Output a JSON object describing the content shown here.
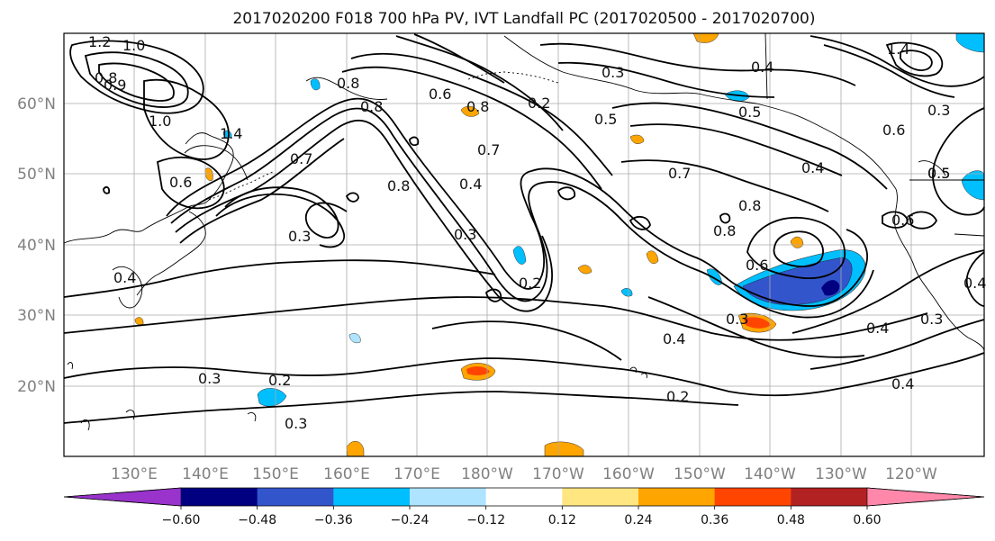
{
  "title": "2017020200 F018 700 hPa PV, IVT Landfall PC (2017020500 - 2017020700)",
  "map": {
    "lat_labels": [
      "60°N",
      "50°N",
      "40°N",
      "30°N",
      "20°N"
    ],
    "lon_labels": [
      "130°E",
      "140°E",
      "150°E",
      "160°E",
      "170°E",
      "180°W",
      "170°W",
      "160°W",
      "150°W",
      "140°W",
      "130°W",
      "120°W"
    ],
    "gridlines": true,
    "contour_labels": [
      "1.2",
      "1.0",
      "0.8",
      "0.9",
      "1.4",
      "1.0",
      "0.6",
      "0.7",
      "0.8",
      "0.8",
      "0.6",
      "0.8",
      "0.7",
      "0.4",
      "0.2",
      "0.3",
      "0.5",
      "0.4",
      "0.5",
      "0.6",
      "0.3",
      "1.4",
      "0.5",
      "0.7",
      "0.8",
      "0.8",
      "0.6",
      "0.3",
      "0.2",
      "0.3",
      "0.4",
      "0.2",
      "0.3",
      "0.2",
      "0.3",
      "0.3",
      "0.4",
      "0.4",
      "0.3",
      "0.4",
      "0.6",
      "0.5",
      "0.4",
      "0.4",
      "0.8"
    ]
  },
  "colorbar": {
    "ticks": [
      "−0.60",
      "−0.48",
      "−0.36",
      "−0.24",
      "−0.12",
      "0.12",
      "0.24",
      "0.36",
      "0.48",
      "0.60"
    ],
    "colors": [
      "#9933cc",
      "#000080",
      "#3355cc",
      "#00bfff",
      "#aee4ff",
      "#ffffff",
      "#ffe680",
      "#ffa500",
      "#ff4500",
      "#b22222",
      "#ff88aa"
    ],
    "extend": "both"
  },
  "colors": {
    "contour": "#000000",
    "grid": "#aaaaaa",
    "coast": "#000000"
  }
}
